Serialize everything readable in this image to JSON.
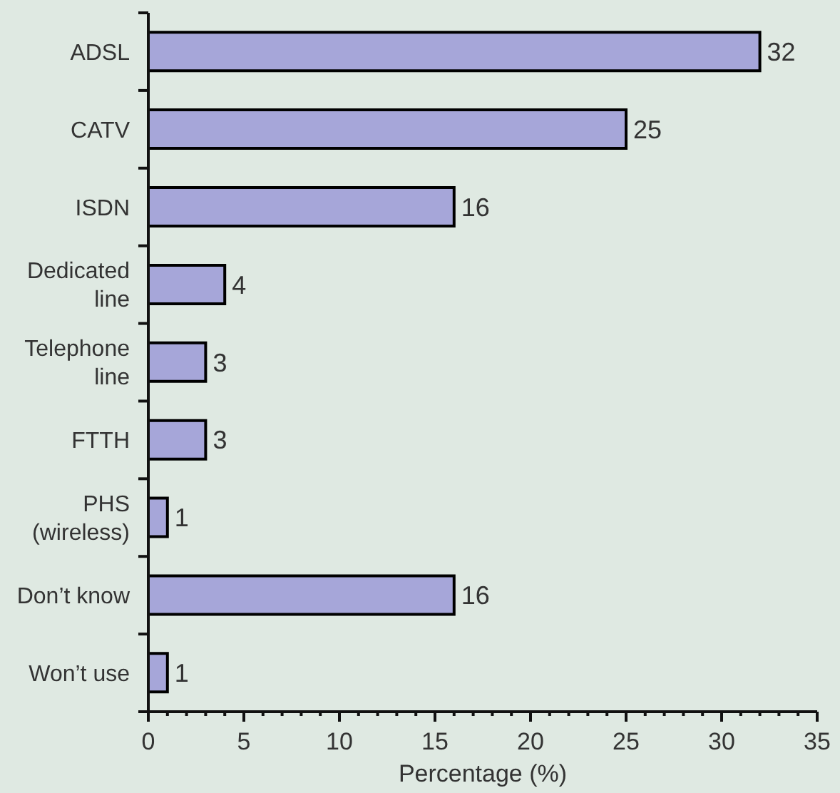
{
  "chart_data": {
    "type": "bar",
    "orientation": "horizontal",
    "categories": [
      "ADSL",
      "CATV",
      "ISDN",
      "Dedicated line",
      "Telephone line",
      "FTTH",
      "PHS (wireless)",
      "Don’t know",
      "Won’t use"
    ],
    "values": [
      32,
      25,
      16,
      4,
      3,
      3,
      1,
      16,
      1
    ],
    "color": "#a6a6d9",
    "data_labels": true,
    "xlabel": "Percentage (%)",
    "xlim": [
      0,
      35
    ],
    "xticks": [
      0,
      {
        "value": 1,
        "label": null
      },
      {
        "value": 2,
        "label": null
      },
      {
        "value": 3,
        "label": null
      },
      {
        "value": 4,
        "label": null
      },
      5,
      {
        "value": 6,
        "label": null
      },
      {
        "value": 7,
        "label": null
      },
      {
        "value": 8,
        "label": null
      },
      {
        "value": 9,
        "label": null
      },
      10,
      {
        "value": 11,
        "label": null
      },
      {
        "value": 12,
        "label": null
      },
      {
        "value": 13,
        "label": null
      },
      {
        "value": 14,
        "label": null
      },
      15,
      {
        "value": 16,
        "label": null
      },
      {
        "value": 17,
        "label": null
      },
      {
        "value": 18,
        "label": null
      },
      {
        "value": 19,
        "label": null
      },
      20,
      {
        "value": 21,
        "label": null
      },
      {
        "value": 22,
        "label": null
      },
      {
        "value": 23,
        "label": null
      },
      {
        "value": 24,
        "label": null
      },
      25,
      {
        "value": 26,
        "label": null
      },
      {
        "value": 27,
        "label": null
      },
      {
        "value": 28,
        "label": null
      },
      {
        "value": 29,
        "label": null
      },
      30,
      {
        "value": 31,
        "label": null
      },
      {
        "value": 32,
        "label": null
      },
      {
        "value": 33,
        "label": null
      },
      {
        "value": 34,
        "label": null
      },
      35
    ]
  }
}
